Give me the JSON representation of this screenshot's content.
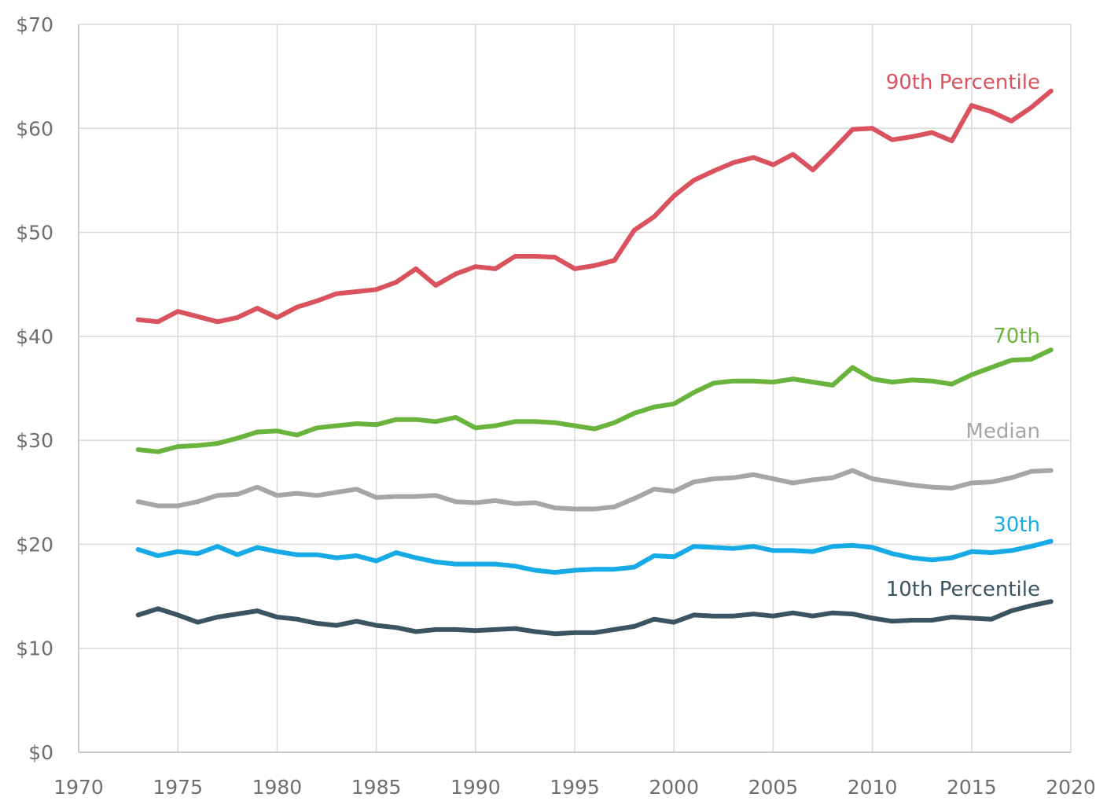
{
  "chart_data": {
    "type": "line",
    "title": "",
    "xlabel": "",
    "ylabel": "",
    "xlim": [
      1970,
      2020
    ],
    "ylim": [
      0,
      70
    ],
    "x_ticks": [
      1970,
      1975,
      1980,
      1985,
      1990,
      1995,
      2000,
      2005,
      2010,
      2015,
      2020
    ],
    "x_tick_labels": [
      "1970",
      "1975",
      "1980",
      "1985",
      "1990",
      "1995",
      "2000",
      "2005",
      "2010",
      "2015",
      "2020"
    ],
    "y_ticks": [
      0,
      10,
      20,
      30,
      40,
      50,
      60,
      70
    ],
    "y_tick_labels": [
      "$0",
      "$10",
      "$20",
      "$30",
      "$40",
      "$50",
      "$60",
      "$70"
    ],
    "grid": true,
    "legend": "none",
    "x": [
      1973,
      1974,
      1975,
      1976,
      1977,
      1978,
      1979,
      1980,
      1981,
      1982,
      1983,
      1984,
      1985,
      1986,
      1987,
      1988,
      1989,
      1990,
      1991,
      1992,
      1993,
      1994,
      1995,
      1996,
      1997,
      1998,
      1999,
      2000,
      2001,
      2002,
      2003,
      2004,
      2005,
      2006,
      2007,
      2008,
      2009,
      2010,
      2011,
      2012,
      2013,
      2014,
      2015,
      2016,
      2017,
      2018,
      2019
    ],
    "series": [
      {
        "name": "90th Percentile",
        "color": "#d9525e",
        "values": [
          41.6,
          41.4,
          42.4,
          41.9,
          41.4,
          41.8,
          42.7,
          41.8,
          42.8,
          43.4,
          44.1,
          44.3,
          44.5,
          45.2,
          46.5,
          44.9,
          46.0,
          46.7,
          46.5,
          47.7,
          47.7,
          47.6,
          46.5,
          46.8,
          47.3,
          50.2,
          51.5,
          53.5,
          55.0,
          55.9,
          56.7,
          57.2,
          56.5,
          57.5,
          56.0,
          57.9,
          59.9,
          60.0,
          58.9,
          59.2,
          59.6,
          58.8,
          62.2,
          61.6,
          60.7,
          62.0,
          63.6
        ],
        "label_color": "#d9525e"
      },
      {
        "name": "70th",
        "color": "#6ab43e",
        "values": [
          29.1,
          28.9,
          29.4,
          29.5,
          29.7,
          30.2,
          30.8,
          30.9,
          30.5,
          31.2,
          31.4,
          31.6,
          31.5,
          32.0,
          32.0,
          31.8,
          32.2,
          31.2,
          31.4,
          31.8,
          31.8,
          31.7,
          31.4,
          31.1,
          31.7,
          32.6,
          33.2,
          33.5,
          34.6,
          35.5,
          35.7,
          35.7,
          35.6,
          35.9,
          35.6,
          35.3,
          37.0,
          35.9,
          35.6,
          35.8,
          35.7,
          35.4,
          36.3,
          37.0,
          37.7,
          37.8,
          38.7
        ],
        "label_color": "#6ab43e"
      },
      {
        "name": "Median",
        "color": "#a6a6a6",
        "values": [
          24.1,
          23.7,
          23.7,
          24.1,
          24.7,
          24.8,
          25.5,
          24.7,
          24.9,
          24.7,
          25.0,
          25.3,
          24.5,
          24.6,
          24.6,
          24.7,
          24.1,
          24.0,
          24.2,
          23.9,
          24.0,
          23.5,
          23.4,
          23.4,
          23.6,
          24.4,
          25.3,
          25.1,
          26.0,
          26.3,
          26.4,
          26.7,
          26.3,
          25.9,
          26.2,
          26.4,
          27.1,
          26.3,
          26.0,
          25.7,
          25.5,
          25.4,
          25.9,
          26.0,
          26.4,
          27.0,
          27.1
        ],
        "label_color": "#a6a6a6"
      },
      {
        "name": "30th",
        "color": "#16aae6",
        "values": [
          19.5,
          18.9,
          19.3,
          19.1,
          19.8,
          19.0,
          19.7,
          19.3,
          19.0,
          19.0,
          18.7,
          18.9,
          18.4,
          19.2,
          18.7,
          18.3,
          18.1,
          18.1,
          18.1,
          17.9,
          17.5,
          17.3,
          17.5,
          17.6,
          17.6,
          17.8,
          18.9,
          18.8,
          19.8,
          19.7,
          19.6,
          19.8,
          19.4,
          19.4,
          19.3,
          19.8,
          19.9,
          19.7,
          19.1,
          18.7,
          18.5,
          18.7,
          19.3,
          19.2,
          19.4,
          19.8,
          20.3
        ],
        "label_color": "#16aae6"
      },
      {
        "name": "10th Percentile",
        "color": "#3c5462",
        "values": [
          13.2,
          13.8,
          13.2,
          12.5,
          13.0,
          13.3,
          13.6,
          13.0,
          12.8,
          12.4,
          12.2,
          12.6,
          12.2,
          12.0,
          11.6,
          11.8,
          11.8,
          11.7,
          11.8,
          11.9,
          11.6,
          11.4,
          11.5,
          11.5,
          11.8,
          12.1,
          12.8,
          12.5,
          13.2,
          13.1,
          13.1,
          13.3,
          13.1,
          13.4,
          13.1,
          13.4,
          13.3,
          12.9,
          12.6,
          12.7,
          12.7,
          13.0,
          12.9,
          12.8,
          13.6,
          14.1,
          14.5
        ],
        "label_color": "#3c5462"
      }
    ]
  }
}
